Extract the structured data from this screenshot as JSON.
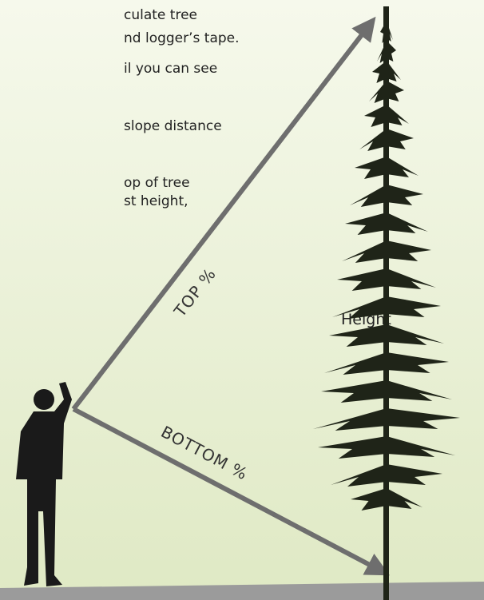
{
  "instructions": {
    "lines": [
      "culate tree",
      "nd logger’s tape.",
      "il you can see",
      "slope distance",
      "op of tree",
      "st height,",
      "Height"
    ]
  },
  "diagram": {
    "top_label": "TOP %",
    "bottom_label": "BOTTOM %"
  }
}
